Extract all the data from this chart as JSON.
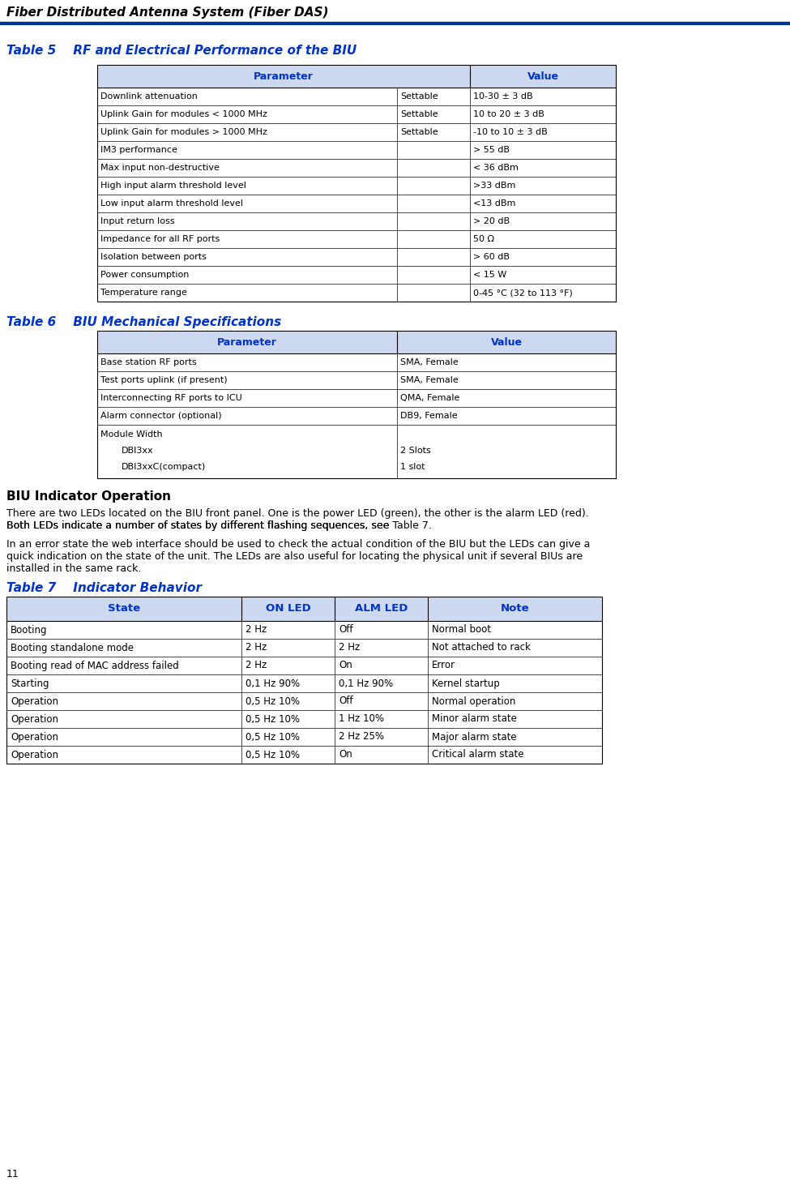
{
  "page_bg": "#ffffff",
  "header_text": "Fiber Distributed Antenna System (Fiber DAS)",
  "header_line_color": "#003399",
  "page_number": "11",
  "blue_color": "#0033cc",
  "table_border_color": "#000000",
  "header_bg": "#dce6f1",
  "table5_title": "Table 5    RF and Electrical Performance of the BIU",
  "table5_headers": [
    "Parameter",
    "Value"
  ],
  "table5_rows": [
    [
      "Downlink attenuation",
      "Settable",
      "10-30 ± 3 dB"
    ],
    [
      "Uplink Gain for modules < 1000 MHz",
      "Settable",
      "10 to 20 ± 3 dB"
    ],
    [
      "Uplink Gain for modules > 1000 MHz",
      "Settable",
      "-10 to 10 ± 3 dB"
    ],
    [
      "IM3 performance",
      "",
      "> 55 dB"
    ],
    [
      "Max input non-destructive",
      "",
      "< 36 dBm"
    ],
    [
      "High input alarm threshold level",
      "",
      ">33 dBm"
    ],
    [
      "Low input alarm threshold level",
      "",
      "<13 dBm"
    ],
    [
      "Input return loss",
      "",
      "> 20 dB"
    ],
    [
      "Impedance for all RF ports",
      "",
      "50 Ω"
    ],
    [
      "Isolation between ports",
      "",
      "> 60 dB"
    ],
    [
      "Power consumption",
      "",
      "< 15 W"
    ],
    [
      "Temperature range",
      "",
      "0-45 °C (32 to 113 °F)"
    ]
  ],
  "table6_title": "Table 6    BIU Mechanical Specifications",
  "table6_headers": [
    "Parameter",
    "Value"
  ],
  "table6_rows": [
    [
      "Base station RF ports",
      "SMA, Female"
    ],
    [
      "Test ports uplink (if present)",
      "SMA, Female"
    ],
    [
      "Interconnecting RF ports to ICU",
      "QMA, Female"
    ],
    [
      "Alarm connector (optional)",
      "DB9, Female"
    ],
    [
      "Module Width\n      DBI3xx\n      DBI3xxC(compact)",
      "2 Slots\n1 slot"
    ]
  ],
  "section_title": "BIU Indicator Operation",
  "para1": "There are two LEDs located on the BIU front panel. One is the power LED (green), the other is the alarm LED (red).\nBoth LEDs indicate a number of states by different flashing sequences, see Table 7.",
  "para2": "In an error state the web interface should be used to check the actual condition of the BIU but the LEDs can give a\nquick indication on the state of the unit. The LEDs are also useful for locating the physical unit if several BIUs are\ninstalled in the same rack.",
  "table7_title": "Table 7    Indicator Behavior",
  "table7_headers": [
    "State",
    "ON LED",
    "ALM LED",
    "Note"
  ],
  "table7_rows": [
    [
      "Booting",
      "2 Hz",
      "Off",
      "Normal boot"
    ],
    [
      "Booting standalone mode",
      "2 Hz",
      "2 Hz",
      "Not attached to rack"
    ],
    [
      "Booting read of MAC address failed",
      "2 Hz",
      "On",
      "Error"
    ],
    [
      "Starting",
      "0,1 Hz 90%",
      "0,1 Hz 90%",
      "Kernel startup"
    ],
    [
      "Operation",
      "0,5 Hz 10%",
      "Off",
      "Normal operation"
    ],
    [
      "Operation",
      "0,5 Hz 10%",
      "1 Hz 10%",
      "Minor alarm state"
    ],
    [
      "Operation",
      "0,5 Hz 10%",
      "2 Hz 25%",
      "Major alarm state"
    ],
    [
      "Operation",
      "0,5 Hz 10%",
      "On",
      "Critical alarm state"
    ]
  ]
}
